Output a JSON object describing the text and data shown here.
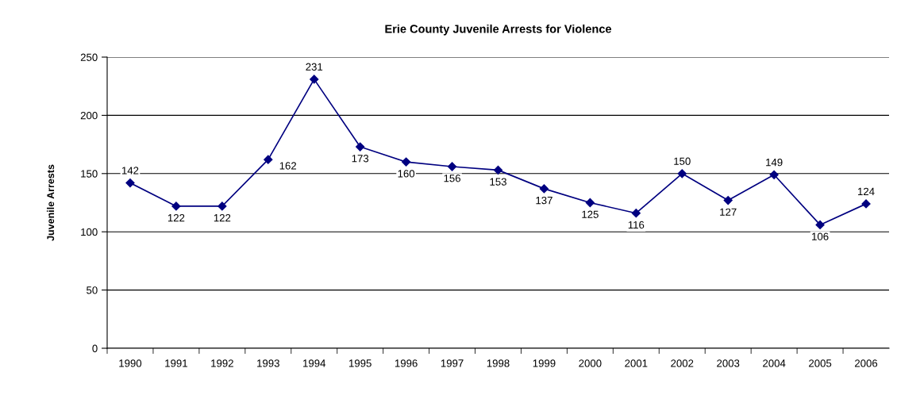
{
  "chart_data": {
    "type": "line",
    "title": "Erie County Juvenile Arrests for Violence",
    "ylabel": "Juvenile Arrests",
    "categories": [
      "1990",
      "1991",
      "1992",
      "1993",
      "1994",
      "1995",
      "1996",
      "1997",
      "1998",
      "1999",
      "2000",
      "2001",
      "2002",
      "2003",
      "2004",
      "2005",
      "2006"
    ],
    "series": [
      {
        "color": "#000080",
        "values": [
          142,
          122,
          122,
          162,
          231,
          173,
          160,
          156,
          153,
          137,
          125,
          116,
          150,
          127,
          149,
          106,
          124
        ]
      }
    ],
    "ylim": [
      0,
      250
    ],
    "yticks": [
      0,
      50,
      100,
      150,
      200,
      250
    ],
    "grid": "y",
    "marker": "diamond",
    "line_style": "solid",
    "data_labels": true,
    "legend": false
  }
}
